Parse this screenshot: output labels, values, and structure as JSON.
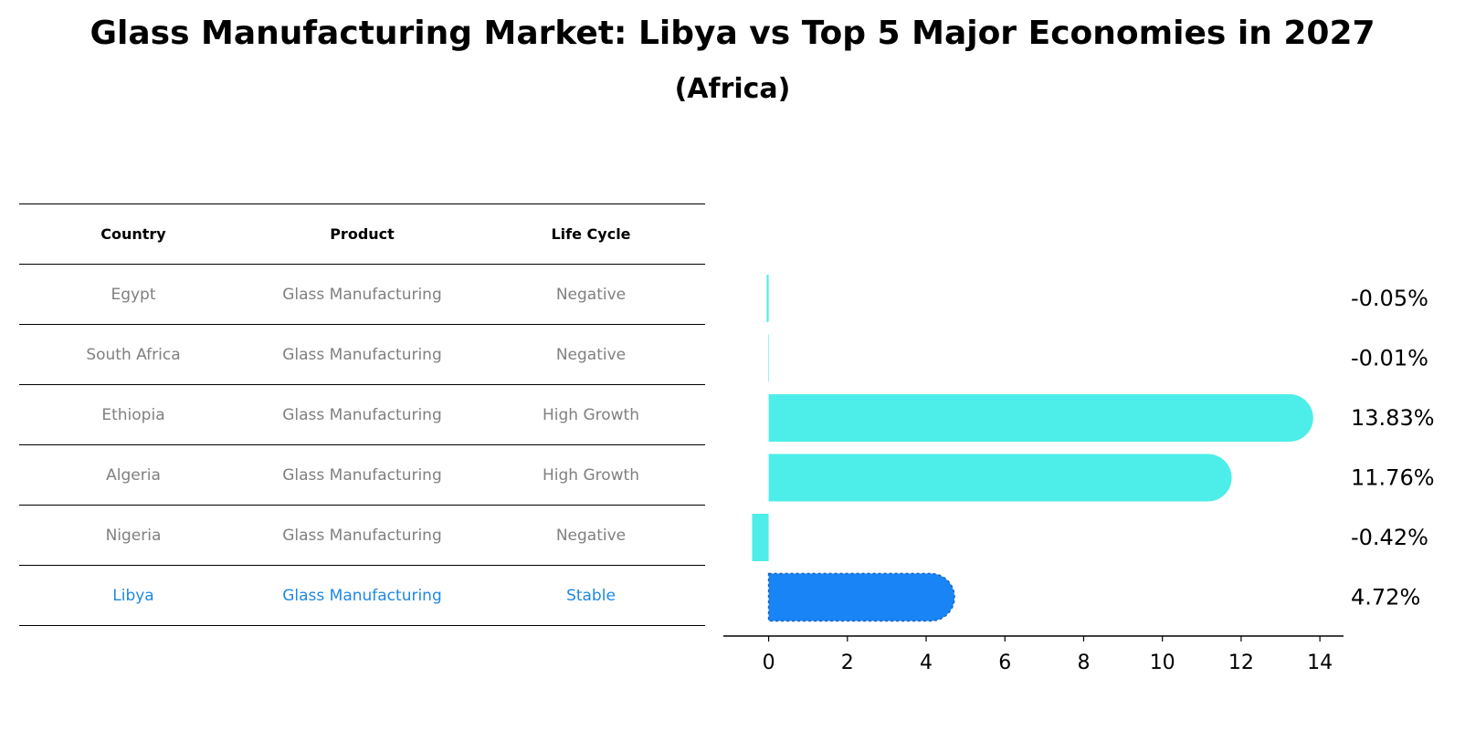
{
  "title": "Glass Manufacturing Market: Libya vs Top 5 Major Economies in 2027",
  "subtitle": "(Africa)",
  "table": {
    "headers": [
      "Country",
      "Product",
      "Life Cycle"
    ],
    "rows": [
      {
        "country": "Egypt",
        "product": "Glass Manufacturing",
        "life_cycle": "Negative"
      },
      {
        "country": "South Africa",
        "product": "Glass Manufacturing",
        "life_cycle": "Negative"
      },
      {
        "country": "Ethiopia",
        "product": "Glass Manufacturing",
        "life_cycle": "High Growth"
      },
      {
        "country": "Algeria",
        "product": "Glass Manufacturing",
        "life_cycle": "High Growth"
      },
      {
        "country": "Nigeria",
        "product": "Glass Manufacturing",
        "life_cycle": "Negative"
      },
      {
        "country": "Libya",
        "product": "Glass Manufacturing",
        "life_cycle": "Stable"
      }
    ]
  },
  "chart_data": {
    "type": "bar",
    "orientation": "horizontal",
    "categories": [
      "Egypt",
      "South Africa",
      "Ethiopia",
      "Algeria",
      "Nigeria",
      "Libya"
    ],
    "values": [
      -0.05,
      -0.01,
      13.83,
      11.76,
      -0.42,
      4.72
    ],
    "value_labels": [
      "-0.05%",
      "-0.01%",
      "13.83%",
      "11.76%",
      "-0.42%",
      "4.72%"
    ],
    "highlight": "Libya",
    "xlim": [
      -1.15,
      14.6
    ],
    "xticks": [
      0,
      2,
      4,
      6,
      8,
      10,
      12,
      14
    ],
    "colors": {
      "default": "#4deee9",
      "highlight": "#1984f5"
    }
  }
}
